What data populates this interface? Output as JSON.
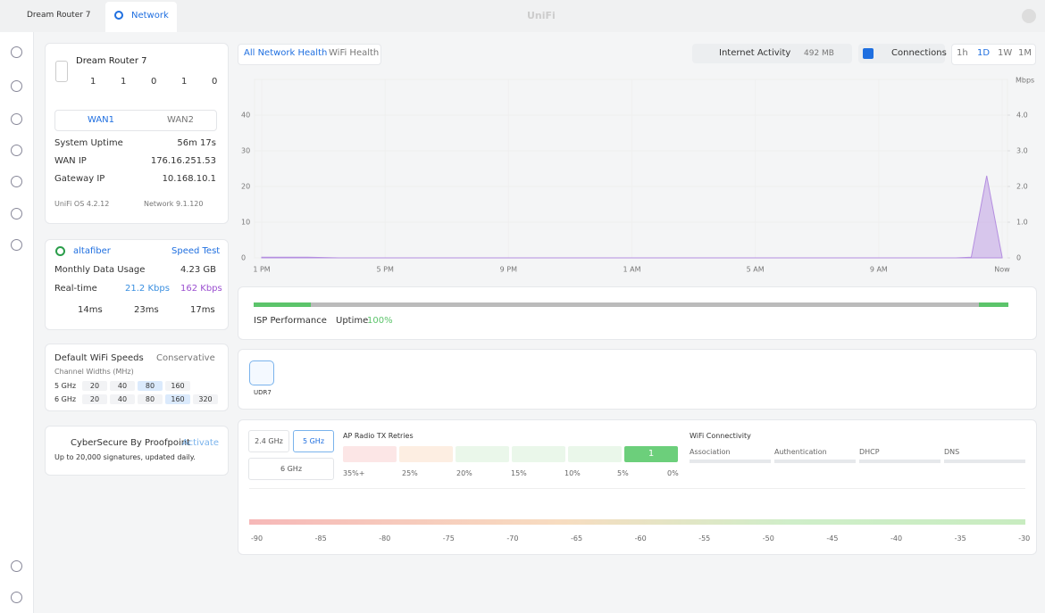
{
  "topbar": {
    "site": "Dream Router 7",
    "app": "Network",
    "logo": "UniFi"
  },
  "device": {
    "name": "Dream Router 7",
    "counts": [
      1,
      1,
      0,
      1,
      0
    ],
    "wan_tabs": [
      "WAN1",
      "WAN2"
    ],
    "stats": [
      [
        "System Uptime",
        "56m 17s"
      ],
      [
        "WAN IP",
        "176.16.251.53"
      ],
      [
        "Gateway IP",
        "10.168.10.1"
      ]
    ],
    "os_version": "UniFi OS 4.2.12",
    "network_version": "Network 9.1.120"
  },
  "isp": {
    "name": "altafiber",
    "action": "Speed Test",
    "usage_label": "Monthly Data Usage",
    "usage": "4.23 GB",
    "realtime_label": "Real-time",
    "down": "21.2 Kbps",
    "up": "162 Kbps",
    "latency": [
      "14ms",
      "23ms",
      "17ms"
    ]
  },
  "wifi_speeds": {
    "title": "Default WiFi Speeds",
    "mode": "Conservative",
    "subtitle": "Channel Widths (MHz)",
    "rows": [
      {
        "band": "5 GHz",
        "widths": [
          20,
          40,
          80,
          160
        ],
        "selected": 80
      },
      {
        "band": "6 GHz",
        "widths": [
          20,
          40,
          80,
          160,
          320
        ],
        "selected": 160
      }
    ]
  },
  "cybersecure": {
    "title": "CyberSecure By Proofpoint",
    "action": "Activate",
    "note": "Up to 20,000 signatures, updated daily."
  },
  "health_tabs": [
    "All Network Health",
    "WiFi Health"
  ],
  "controls": {
    "activity": "Internet Activity",
    "activity_total": "492 MB",
    "connections": "Connections",
    "ranges": [
      "1h",
      "1D",
      "1W",
      "1M"
    ],
    "active_range": "1D"
  },
  "chart_data": {
    "type": "area",
    "y2_label": "Mbps",
    "x_labels": [
      "1 PM",
      "5 PM",
      "9 PM",
      "1 AM",
      "5 AM",
      "9 AM",
      "Now"
    ],
    "ylim": [
      0,
      50
    ],
    "yticks": [
      0,
      10,
      20,
      30,
      40
    ],
    "y2lim": [
      0,
      5
    ],
    "y2ticks": [
      {
        "value": 0,
        "label": "0"
      },
      {
        "value": 1,
        "label": "1.0"
      },
      {
        "value": 2,
        "label": "2.0"
      },
      {
        "value": 3,
        "label": "3.0"
      },
      {
        "value": 4,
        "label": "4.0"
      }
    ],
    "series": [
      {
        "name": "Internet Activity",
        "color": "#b48ee0",
        "axis": "y2",
        "values": [
          0.02,
          0.02,
          0.02,
          0.02,
          0.01,
          0,
          0,
          0,
          0,
          0,
          0,
          0,
          0,
          0,
          0,
          0,
          0,
          0,
          0,
          0,
          0,
          0,
          0,
          0,
          0,
          0,
          0,
          0,
          0,
          0,
          0,
          0,
          0,
          0,
          0,
          0,
          0,
          0,
          0,
          0,
          0,
          0,
          0,
          0,
          0,
          0,
          0.02,
          2.3,
          0.02
        ]
      }
    ]
  },
  "isp_performance": {
    "title": "ISP Performance",
    "uptime_label": "Uptime",
    "uptime": "100%"
  },
  "devices": [
    "UDR7"
  ],
  "wifi": {
    "bands": [
      "2.4 GHz",
      "5 GHz",
      "6 GHz"
    ],
    "active_band": "5 GHz",
    "retries_title": "AP Radio TX Retries",
    "retry_labels": [
      "35%+",
      "25%",
      "20%",
      "15%",
      "10%",
      "5%",
      "0%"
    ],
    "retry_counts": [
      null,
      null,
      null,
      null,
      null,
      1
    ],
    "connectivity_title": "WiFi Connectivity",
    "connectivity": [
      "Association",
      "Authentication",
      "DHCP",
      "DNS"
    ]
  },
  "rssi_scale": [
    -90,
    -85,
    -80,
    -75,
    -70,
    -65,
    -60,
    -55,
    -50,
    -45,
    -40,
    -35,
    -30
  ]
}
